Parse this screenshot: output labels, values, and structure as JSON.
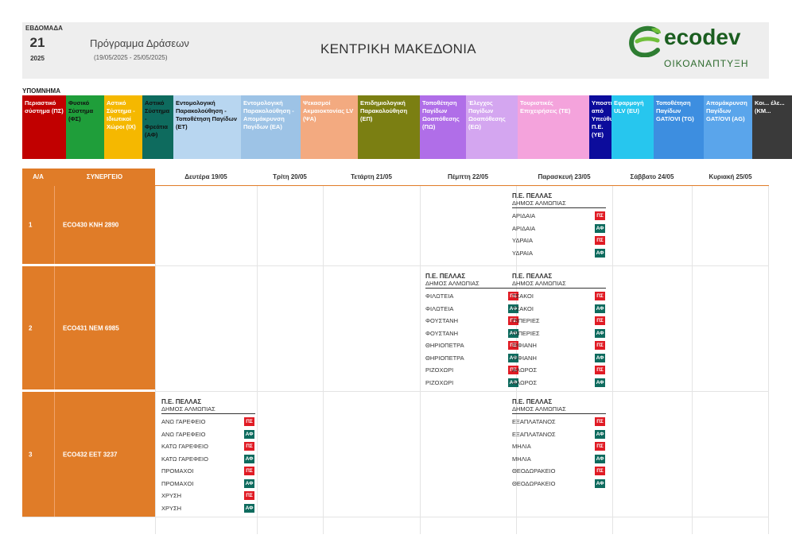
{
  "header": {
    "week_label": "ΕΒΔΟΜΑΔΑ",
    "week_number": "21",
    "year": "2025",
    "program_title": "Πρόγραμμα Δράσεων",
    "date_range": "(19/05/2025 - 25/05/2025)",
    "region": "ΚΕΝΤΡΙΚΗ ΜΑΚΕΔΟΝΙΑ",
    "logo_name": "ecodev",
    "logo_subtitle": "ΟΙΚΟΑΝΑΠΤΥΞΗ"
  },
  "colors": {
    "orange": "#e07c28",
    "gray_header": "#eeeeee",
    "ps_badge": "#e01b24",
    "af_badge": "#0e6b5e"
  },
  "legend": {
    "title": "ΥΠΟΜΝΗΜΑ",
    "items": [
      {
        "label": "Περιαστικό σύστημα (ΠΣ)",
        "bg": "#c10000",
        "fg": "#ffffff"
      },
      {
        "label": "Φυσικό Σύστημα (ΦΣ)",
        "bg": "#1f9e3a",
        "fg": "#111111"
      },
      {
        "label": "Αστικό Σύστημα - Ιδιωτικοί Χώροι (ΙΧ)",
        "bg": "#f5b800",
        "fg": "#ffffff"
      },
      {
        "label": "Αστικό Σύστημα - Φρεάτια (ΑΦ)",
        "bg": "#0e6b5e",
        "fg": "#111111"
      },
      {
        "label": "Εντομολογική Παρακολούθηση - Τοποθέτηση Παγίδων (ΕΤ)",
        "bg": "#b8d6f0",
        "fg": "#111111"
      },
      {
        "label": "Εντομολογική Παρακολούθηση - Απομάκρυνση Παγίδων (ΕΑ)",
        "bg": "#9dc3e6",
        "fg": "#ffffff"
      },
      {
        "label": "Ψεκασμοί Ακμαιοκτονίας LV (ΨΑ)",
        "bg": "#f3aa80",
        "fg": "#ffffff"
      },
      {
        "label": "Επιδημιολογική Παρακολούθηση (ΕΠ)",
        "bg": "#7b7f12",
        "fg": "#ffffff"
      },
      {
        "label": "Τοποθέτηση Παγίδων Ωοαπόθεσης (ΠΩ)",
        "bg": "#b06ee8",
        "fg": "#ffffff"
      },
      {
        "label": "Έλεγχος Παγίδων Ωοαπόθεσης (ΕΩ)",
        "bg": "#d4a6f0",
        "fg": "#ffffff"
      },
      {
        "label": "Τουριστικές Επιχειρήσεις (ΤΕ)",
        "bg": "#f4a3dc",
        "fg": "#ffffff"
      },
      {
        "label": "Υποστήριξη από Υπεύθυνο Π.Ε. (ΥΕ)",
        "bg": "#0c0c9c",
        "fg": "#ffffff"
      },
      {
        "label": "Εφαρμογή ULV (EU)",
        "bg": "#27c6ee",
        "fg": "#ffffff"
      },
      {
        "label": "Τοποθέτηση Παγίδων GAT/OVI (TG)",
        "bg": "#3d8ee0",
        "fg": "#ffffff"
      },
      {
        "label": "Απομάκρυνση Παγίδων GAT/OVI (AG)",
        "bg": "#5aa5eb",
        "fg": "#ffffff"
      },
      {
        "label": "Κοι... έλε... (ΚΜ...",
        "bg": "#3a3a3a",
        "fg": "#ffffff"
      }
    ]
  },
  "table": {
    "columns": [
      "Α/Α",
      "ΣΥΝΕΡΓΕΙΟ",
      "Δευτέρα 19/05",
      "Τρίτη 20/05",
      "Τετάρτη 21/05",
      "Πέμπτη 22/05",
      "Παρασκευή 23/05",
      "Σάββατο 24/05",
      "Κυριακή 25/05"
    ],
    "rows": [
      {
        "num": "1",
        "crew": "ECO430  KNH 2890"
      },
      {
        "num": "2",
        "crew": "ECO431  NEM 6985"
      },
      {
        "num": "3",
        "crew": "ECO432  EET 3237"
      }
    ],
    "cards": [
      {
        "pe": "Π.Ε. ΠΕΛΛΑΣ",
        "dimos": "ΔΗΜΟΣ ΑΛΜΩΠΙΑΣ",
        "entries": [
          {
            "name": "ΑΡΙΔΑΙΑ",
            "code": "ΠΣ"
          },
          {
            "name": "ΑΡΙΔΑΙΑ",
            "code": "ΑΦ"
          },
          {
            "name": "ΥΔΡΑΙΑ",
            "code": "ΠΣ"
          },
          {
            "name": "ΥΔΡΑΙΑ",
            "code": "ΑΦ"
          }
        ]
      },
      {
        "pe": "Π.Ε. ΠΕΛΛΑΣ",
        "dimos": "ΔΗΜΟΣ ΑΛΜΩΠΙΑΣ",
        "entries": [
          {
            "name": "ΦΙΛΩΤΕΙΑ",
            "code": "ΠΣ"
          },
          {
            "name": "ΦΙΛΩΤΕΙΑ",
            "code": "ΑΦ"
          },
          {
            "name": "ΦΟΥΣΤΑΝΗ",
            "code": "ΠΣ"
          },
          {
            "name": "ΦΟΥΣΤΑΝΗ",
            "code": "ΑΦ"
          },
          {
            "name": "ΘΗΡΙΟΠΕΤΡΑ",
            "code": "ΠΣ"
          },
          {
            "name": "ΘΗΡΙΟΠΕΤΡΑ",
            "code": "ΑΦ"
          },
          {
            "name": "ΡΙΖΟΧΩΡΙ",
            "code": "ΠΣ"
          },
          {
            "name": "ΡΙΖΟΧΩΡΙ",
            "code": "ΑΦ"
          }
        ]
      },
      {
        "pe": "Π.Ε. ΠΕΛΛΑΣ",
        "dimos": "ΔΗΜΟΣ ΑΛΜΩΠΙΑΣ",
        "entries": [
          {
            "name": "ΤΣΑΚΟΙ",
            "code": "ΠΣ"
          },
          {
            "name": "ΤΣΑΚΟΙ",
            "code": "ΑΦ"
          },
          {
            "name": "ΠΙΠΕΡΙΕΣ",
            "code": "ΠΣ"
          },
          {
            "name": "ΠΙΠΕΡΙΕΣ",
            "code": "ΑΦ"
          },
          {
            "name": "ΞΙΦΙΑΝΗ",
            "code": "ΠΣ"
          },
          {
            "name": "ΞΙΦΙΑΝΗ",
            "code": "ΑΦ"
          },
          {
            "name": "ΑΛΩΡΟΣ",
            "code": "ΠΣ"
          },
          {
            "name": "ΑΛΩΡΟΣ",
            "code": "ΑΦ"
          }
        ]
      },
      {
        "pe": "Π.Ε. ΠΕΛΛΑΣ",
        "dimos": "ΔΗΜΟΣ ΑΛΜΩΠΙΑΣ",
        "entries": [
          {
            "name": "ΑΝΩ ΓΑΡΕΦΕΙΟ",
            "code": "ΠΣ"
          },
          {
            "name": "ΑΝΩ ΓΑΡΕΦΕΙΟ",
            "code": "ΑΦ"
          },
          {
            "name": "ΚΑΤΩ ΓΑΡΕΦΕΙΟ",
            "code": "ΠΣ"
          },
          {
            "name": "ΚΑΤΩ ΓΑΡΕΦΕΙΟ",
            "code": "ΑΦ"
          },
          {
            "name": "ΠΡΟΜΑΧΟΙ",
            "code": "ΠΣ"
          },
          {
            "name": "ΠΡΟΜΑΧΟΙ",
            "code": "ΑΦ"
          },
          {
            "name": "ΧΡΥΣΗ",
            "code": "ΠΣ"
          },
          {
            "name": "ΧΡΥΣΗ",
            "code": "ΑΦ"
          }
        ]
      },
      {
        "pe": "Π.Ε. ΠΕΛΛΑΣ",
        "dimos": "ΔΗΜΟΣ ΑΛΜΩΠΙΑΣ",
        "entries": [
          {
            "name": "ΕΞΑΠΛΑΤΑΝΟΣ",
            "code": "ΠΣ"
          },
          {
            "name": "ΕΞΑΠΛΑΤΑΝΟΣ",
            "code": "ΑΦ"
          },
          {
            "name": "ΜΗΛΙΑ",
            "code": "ΠΣ"
          },
          {
            "name": "ΜΗΛΙΑ",
            "code": "ΑΦ"
          },
          {
            "name": "ΘΕΟΔΩΡΑΚΕΙΟ",
            "code": "ΠΣ"
          },
          {
            "name": "ΘΕΟΔΩΡΑΚΕΙΟ",
            "code": "ΑΦ"
          }
        ]
      }
    ]
  }
}
